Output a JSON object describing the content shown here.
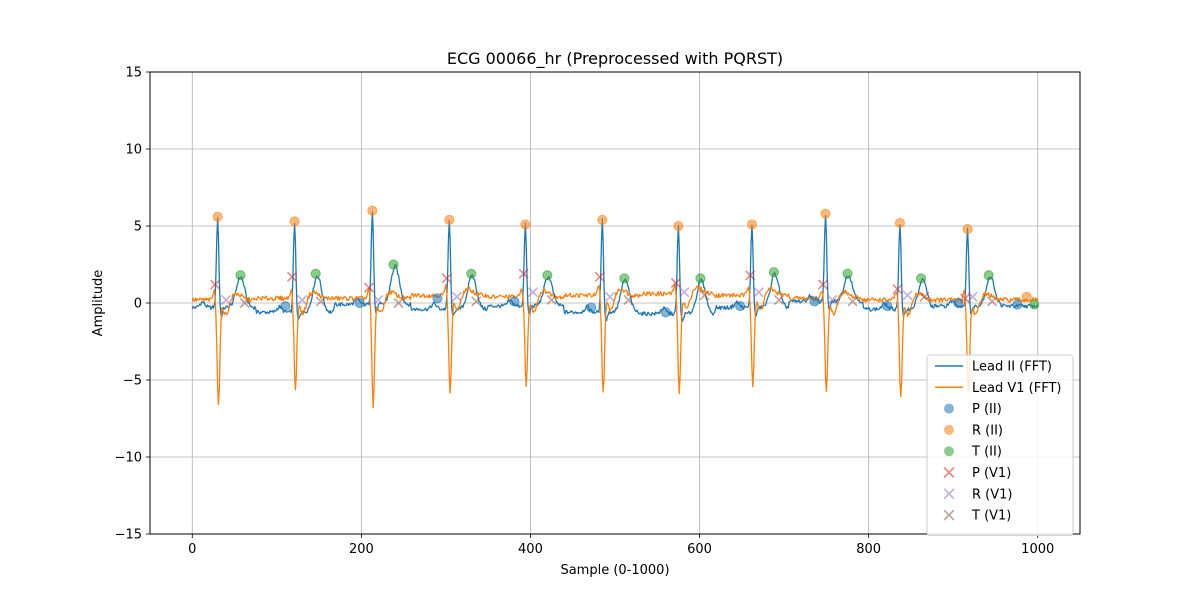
{
  "chart_data": {
    "type": "line",
    "title": "ECG 00066_hr (Preprocessed with PQRST)",
    "xlabel": "Sample (0-1000)",
    "ylabel": "Amplitude",
    "xlim": [
      -50,
      1050
    ],
    "ylim": [
      -15,
      15
    ],
    "xticks": [
      0,
      200,
      400,
      600,
      800,
      1000
    ],
    "yticks": [
      -15,
      -10,
      -5,
      0,
      5,
      10,
      15
    ],
    "grid": true,
    "legend_position": "lower-right",
    "beats_R_x": [
      30,
      121,
      213,
      304,
      394,
      485,
      575,
      662,
      749,
      837,
      917
    ],
    "series": [
      {
        "name": "Lead II (FFT)",
        "color": "#1f77b4",
        "kind": "line",
        "r_amp": [
          5.6,
          5.3,
          6.0,
          5.4,
          5.1,
          5.4,
          5.0,
          5.1,
          5.8,
          5.2,
          4.8
        ],
        "t_amp": [
          1.8,
          1.9,
          2.5,
          1.9,
          1.8,
          1.6,
          1.6,
          2.0,
          1.9,
          1.6,
          1.8
        ],
        "baseline": [
          -0.3,
          -0.6,
          -0.1,
          -0.4,
          -0.2,
          -0.6,
          -0.7,
          -0.3,
          0.1,
          -0.4,
          -0.2
        ]
      },
      {
        "name": "Lead V1 (FFT)",
        "color": "#ff7f0e",
        "kind": "line",
        "s_amp": [
          -6.6,
          -5.6,
          -6.7,
          -5.8,
          -5.4,
          -5.8,
          -5.9,
          -5.3,
          -5.8,
          -6.2,
          -5.8
        ],
        "t_amp": [
          -1.0,
          -1.0,
          -1.0,
          -1.0,
          -1.0,
          -1.0,
          -1.0,
          -1.0,
          -1.0,
          -1.0,
          -1.0
        ],
        "baseline": [
          0.2,
          0.3,
          0.3,
          0.5,
          0.4,
          0.5,
          0.6,
          0.5,
          0.3,
          0.2,
          0.2
        ]
      },
      {
        "name": "P (II)",
        "color": "#1f77b4",
        "kind": "circle",
        "points": [
          [
            110,
            -0.2
          ],
          [
            198,
            0.0
          ],
          [
            290,
            0.3
          ],
          [
            381,
            0.1
          ],
          [
            472,
            -0.3
          ],
          [
            560,
            -0.6
          ],
          [
            648,
            -0.2
          ],
          [
            736,
            0.1
          ],
          [
            822,
            -0.2
          ],
          [
            906,
            0.0
          ],
          [
            976,
            -0.1
          ]
        ]
      },
      {
        "name": "R (II)",
        "color": "#ff7f0e",
        "kind": "circle",
        "points": [
          [
            30,
            5.6
          ],
          [
            121,
            5.3
          ],
          [
            213,
            6.0
          ],
          [
            304,
            5.4
          ],
          [
            394,
            5.1
          ],
          [
            485,
            5.4
          ],
          [
            575,
            5.0
          ],
          [
            662,
            5.1
          ],
          [
            749,
            5.8
          ],
          [
            837,
            5.2
          ],
          [
            917,
            4.8
          ],
          [
            987,
            0.4
          ]
        ]
      },
      {
        "name": "T (II)",
        "color": "#2ca02c",
        "kind": "circle",
        "points": [
          [
            57,
            1.8
          ],
          [
            146,
            1.9
          ],
          [
            238,
            2.5
          ],
          [
            330,
            1.9
          ],
          [
            420,
            1.8
          ],
          [
            511,
            1.6
          ],
          [
            601,
            1.6
          ],
          [
            688,
            2.0
          ],
          [
            775,
            1.9
          ],
          [
            862,
            1.6
          ],
          [
            942,
            1.8
          ],
          [
            996,
            -0.1
          ]
        ]
      },
      {
        "name": "P (V1)",
        "color": "#d62728",
        "kind": "x",
        "points": [
          [
            27,
            1.2
          ],
          [
            118,
            1.7
          ],
          [
            209,
            1.0
          ],
          [
            301,
            1.6
          ],
          [
            392,
            1.9
          ],
          [
            482,
            1.7
          ],
          [
            572,
            1.3
          ],
          [
            660,
            1.8
          ],
          [
            746,
            1.2
          ],
          [
            834,
            0.9
          ],
          [
            914,
            0.3
          ]
        ]
      },
      {
        "name": "R (V1)",
        "color": "#9467bd",
        "kind": "x",
        "points": [
          [
            40,
            0.2
          ],
          [
            130,
            0.2
          ],
          [
            220,
            0.2
          ],
          [
            313,
            0.4
          ],
          [
            403,
            0.7
          ],
          [
            494,
            0.4
          ],
          [
            582,
            0.7
          ],
          [
            670,
            0.7
          ],
          [
            757,
            0.2
          ],
          [
            846,
            0.5
          ],
          [
            923,
            0.4
          ]
        ]
      },
      {
        "name": "T (V1)",
        "color": "#8c564b",
        "kind": "x",
        "points": [
          [
            62,
            0.0
          ],
          [
            152,
            0.1
          ],
          [
            244,
            0.0
          ],
          [
            336,
            0.1
          ],
          [
            425,
            0.2
          ],
          [
            516,
            0.2
          ],
          [
            606,
            0.5
          ],
          [
            694,
            0.2
          ],
          [
            781,
            0.1
          ],
          [
            866,
            0.4
          ],
          [
            946,
            0.1
          ]
        ]
      }
    ]
  }
}
